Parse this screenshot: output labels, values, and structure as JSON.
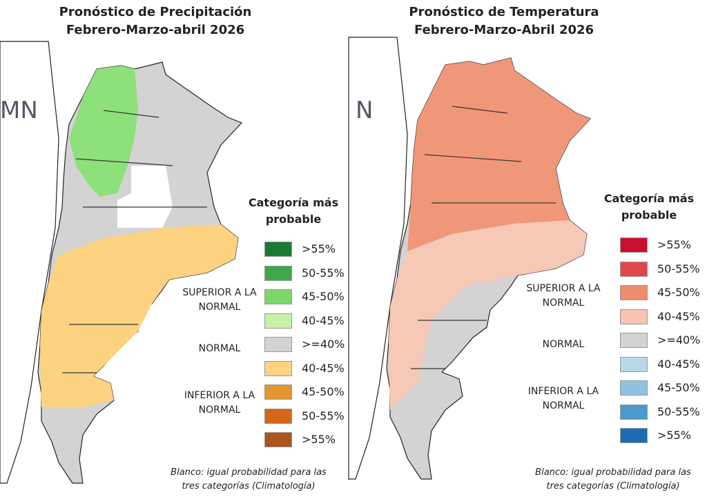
{
  "panels": [
    {
      "title": "Pronóstico de Precipitación",
      "subtitle": "Febrero-Marzo-abril 2026",
      "logo": "MN",
      "legend": {
        "title": "Categoría más probable",
        "items": [
          {
            "label": ">55%",
            "color": "#1a7a32"
          },
          {
            "label": "50-55%",
            "color": "#3fa84a"
          },
          {
            "label": "45-50%",
            "color": "#7dd66a"
          },
          {
            "label": "40-45%",
            "color": "#c8f0a8"
          },
          {
            "label": ">=40%",
            "color": "#d3d3d3"
          },
          {
            "label": "40-45%",
            "color": "#fdd280"
          },
          {
            "label": "45-50%",
            "color": "#e3962e"
          },
          {
            "label": "50-55%",
            "color": "#d4661a"
          },
          {
            "label": ">55%",
            "color": "#a9551c"
          }
        ],
        "groups": [
          "SUPERIOR A LA NORMAL",
          "NORMAL",
          "INFERIOR A LA NORMAL"
        ]
      },
      "note": "Blanco: igual probabilidad para las tres categorías (Climatología)"
    },
    {
      "title": "Pronóstico de Temperatura",
      "subtitle": "Febrero-Marzo-Abril 2026",
      "logo": "N",
      "legend": {
        "title": "Categoría más probable",
        "items": [
          {
            "label": ">55%",
            "color": "#c8102e"
          },
          {
            "label": "50-55%",
            "color": "#e0474c"
          },
          {
            "label": "45-50%",
            "color": "#f08c6e"
          },
          {
            "label": "40-45%",
            "color": "#f6c4b0"
          },
          {
            "label": ">=40%",
            "color": "#d3d3d3"
          },
          {
            "label": "40-45%",
            "color": "#b8d8ea"
          },
          {
            "label": "45-50%",
            "color": "#8ec2e0"
          },
          {
            "label": "50-55%",
            "color": "#4a9acb"
          },
          {
            "label": ">55%",
            "color": "#1a6db3"
          }
        ],
        "groups": [
          "SUPERIOR A LA NORMAL",
          "NORMAL",
          "INFERIOR A LA NORMAL"
        ]
      },
      "note": "Blanco: igual probabilidad para las tres categorías (Climatología)"
    }
  ]
}
